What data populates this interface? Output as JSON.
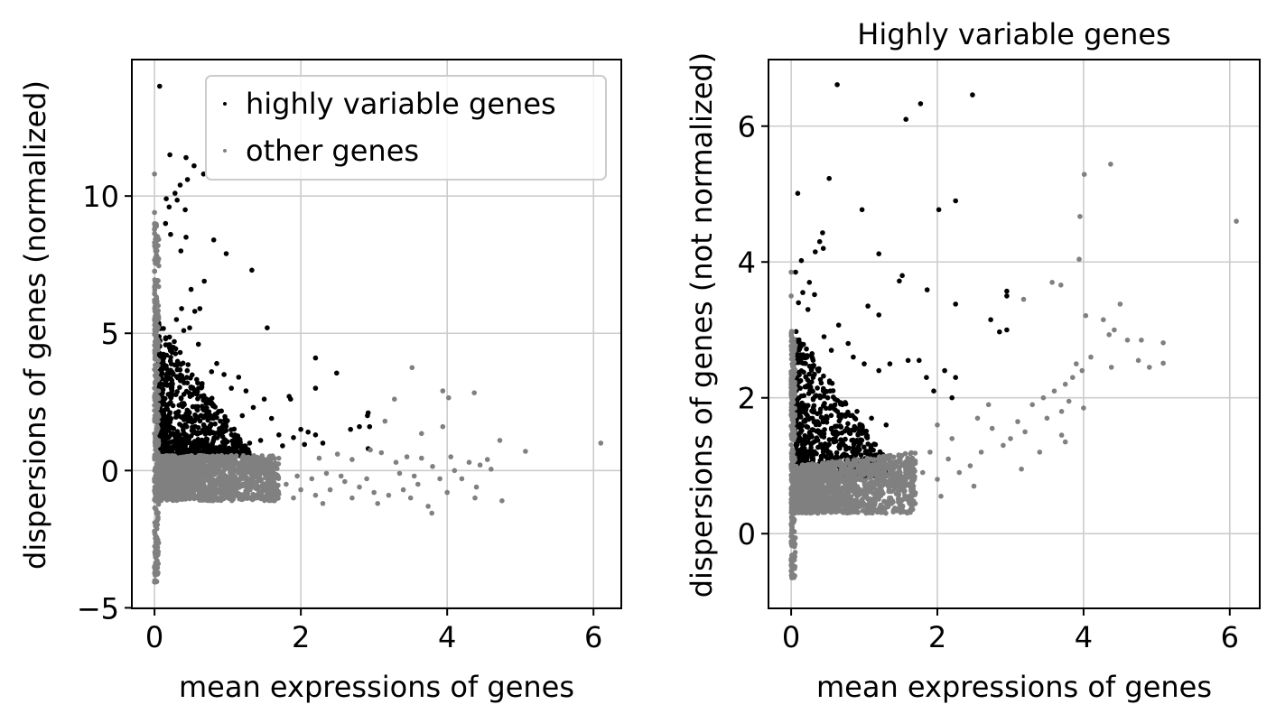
{
  "colors": {
    "highly_variable": "#000000",
    "other": "#808080",
    "grid": "#cccccc",
    "axes": "#000000",
    "legend_border": "#cccccc"
  },
  "chart_data": [
    {
      "type": "scatter",
      "id": "normalized",
      "title": "",
      "xlabel": "mean expressions of genes",
      "ylabel": "dispersions of genes (normalized)",
      "xlim": [
        -0.31,
        6.38
      ],
      "ylim": [
        -5.02,
        14.97
      ],
      "xticks": [
        0,
        2,
        4,
        6
      ],
      "xtick_labels": [
        "0",
        "2",
        "4",
        "6"
      ],
      "yticks": [
        -5,
        0,
        5,
        10
      ],
      "ytick_labels": [
        "−5",
        "0",
        "5",
        "10"
      ],
      "grid": true,
      "legend": {
        "position": "top-right",
        "entries": [
          {
            "label": "highly variable genes",
            "series": "highly_variable"
          },
          {
            "label": "other genes",
            "series": "other"
          }
        ]
      },
      "series": [
        {
          "name": "highly variable genes",
          "key": "highly_variable",
          "points": [
            [
              0.07,
              14.0
            ],
            [
              0.21,
              11.5
            ],
            [
              0.43,
              11.4
            ],
            [
              0.54,
              11.1
            ],
            [
              0.67,
              10.8
            ],
            [
              0.45,
              10.6
            ],
            [
              0.35,
              10.4
            ],
            [
              0.28,
              10.1
            ],
            [
              0.16,
              9.9
            ],
            [
              0.31,
              9.85
            ],
            [
              0.2,
              9.6
            ],
            [
              0.42,
              9.5
            ],
            [
              0.15,
              9.0
            ],
            [
              0.81,
              8.4
            ],
            [
              0.43,
              8.5
            ],
            [
              0.22,
              8.6
            ],
            [
              0.98,
              7.9
            ],
            [
              0.36,
              8.0
            ],
            [
              1.33,
              7.3
            ],
            [
              0.68,
              6.9
            ],
            [
              0.5,
              6.6
            ],
            [
              0.37,
              5.9
            ],
            [
              0.55,
              5.8
            ],
            [
              1.54,
              5.2
            ],
            [
              0.62,
              5.9
            ],
            [
              0.3,
              5.5
            ],
            [
              0.48,
              5.2
            ],
            [
              0.4,
              5.1
            ],
            [
              0.27,
              4.7
            ],
            [
              0.6,
              4.6
            ],
            [
              0.35,
              4.3
            ],
            [
              0.85,
              3.9
            ],
            [
              0.78,
              3.6
            ],
            [
              0.95,
              3.5
            ],
            [
              1.15,
              3.4
            ],
            [
              1.05,
              3.0
            ],
            [
              1.25,
              2.9
            ],
            [
              1.5,
              2.6
            ],
            [
              1.35,
              2.3
            ],
            [
              1.2,
              2.0
            ],
            [
              1.6,
              1.9
            ],
            [
              1.84,
              2.7
            ],
            [
              1.86,
              2.6
            ],
            [
              2.2,
              4.1
            ],
            [
              2.49,
              3.55
            ],
            [
              2.2,
              3.0
            ],
            [
              2.91,
              2.0
            ],
            [
              2.92,
              2.1
            ],
            [
              2.68,
              1.5
            ],
            [
              2.8,
              1.6
            ],
            [
              2.94,
              1.6
            ],
            [
              2.92,
              0.8
            ],
            [
              1.7,
              1.3
            ],
            [
              1.9,
              1.2
            ],
            [
              2.0,
              1.5
            ],
            [
              2.1,
              1.4
            ],
            [
              2.2,
              1.3
            ],
            [
              2.3,
              1.0
            ],
            [
              1.75,
              0.9
            ],
            [
              2.05,
              0.95
            ],
            [
              1.45,
              1.1
            ],
            [
              1.3,
              1.0
            ],
            [
              1.1,
              1.3
            ],
            [
              0.9,
              1.8
            ],
            [
              0.7,
              2.2
            ],
            [
              0.5,
              3.0
            ]
          ],
          "dense_regions": [
            {
              "x": [
                0.05,
                1.3
              ],
              "y_low": 0.55,
              "y_high_at_x0": 5.5,
              "y_high_at_x1": 0.7,
              "count": 900
            }
          ]
        },
        {
          "name": "other genes",
          "key": "other",
          "points": [
            [
              0.0,
              10.8
            ],
            [
              0.0,
              9.4
            ],
            [
              0.01,
              -4.0
            ],
            [
              0.0,
              -3.5
            ],
            [
              3.52,
              3.75
            ],
            [
              3.28,
              2.6
            ],
            [
              3.94,
              2.9
            ],
            [
              4.37,
              2.83
            ],
            [
              3.94,
              1.6
            ],
            [
              4.02,
              2.65
            ],
            [
              3.15,
              1.8
            ],
            [
              3.65,
              1.35
            ],
            [
              6.1,
              1.0
            ],
            [
              4.72,
              1.1
            ],
            [
              5.07,
              0.7
            ],
            [
              4.75,
              -1.1
            ],
            [
              3.79,
              -1.55
            ],
            [
              3.74,
              -1.3
            ],
            [
              2.25,
              0.45
            ],
            [
              2.5,
              0.6
            ],
            [
              2.7,
              0.4
            ],
            [
              2.95,
              0.75
            ],
            [
              3.1,
              0.65
            ],
            [
              3.3,
              0.3
            ],
            [
              3.45,
              0.5
            ],
            [
              3.65,
              0.45
            ],
            [
              3.8,
              0.15
            ],
            [
              4.05,
              0.5
            ],
            [
              4.3,
              0.3
            ],
            [
              4.45,
              0.2
            ],
            [
              4.55,
              0.4
            ],
            [
              4.1,
              0.0
            ],
            [
              3.9,
              -0.3
            ],
            [
              3.6,
              -0.5
            ],
            [
              3.4,
              -0.7
            ],
            [
              3.2,
              -0.9
            ],
            [
              3.0,
              -0.8
            ],
            [
              2.8,
              -0.6
            ],
            [
              2.6,
              -0.4
            ],
            [
              2.4,
              -0.7
            ],
            [
              2.2,
              -0.9
            ],
            [
              2.0,
              -0.7
            ],
            [
              1.8,
              -0.5
            ],
            [
              4.2,
              -0.3
            ],
            [
              4.4,
              -0.6
            ],
            [
              4.0,
              -0.8
            ],
            [
              3.55,
              -0.2
            ],
            [
              3.35,
              -0.1
            ],
            [
              2.9,
              -0.3
            ],
            [
              2.55,
              -0.2
            ],
            [
              2.35,
              -0.1
            ],
            [
              2.15,
              -0.3
            ],
            [
              1.95,
              -0.2
            ],
            [
              4.6,
              0.05
            ],
            [
              3.05,
              -1.2
            ],
            [
              2.7,
              -1.0
            ],
            [
              3.5,
              -1.0
            ],
            [
              4.38,
              -1.0
            ],
            [
              2.3,
              -1.2
            ],
            [
              1.9,
              -1.0
            ]
          ],
          "dense_regions": [
            {
              "x": [
                0.05,
                1.7
              ],
              "y_low": -1.1,
              "y_high": 0.55,
              "count": 1400
            },
            {
              "x": [
                0.0,
                0.06
              ],
              "y_low": -4.1,
              "y_high": 9.0,
              "count": 300
            }
          ]
        }
      ]
    },
    {
      "type": "scatter",
      "id": "not_normalized",
      "title": "Highly variable genes",
      "xlabel": "mean expressions of genes",
      "ylabel": "dispersions of genes (not normalized)",
      "xlim": [
        -0.31,
        6.41
      ],
      "ylim": [
        -1.1,
        6.98
      ],
      "xticks": [
        0,
        2,
        4,
        6
      ],
      "xtick_labels": [
        "0",
        "2",
        "4",
        "6"
      ],
      "yticks": [
        0,
        2,
        4,
        6
      ],
      "ytick_labels": [
        "0",
        "2",
        "4",
        "6"
      ],
      "grid": true,
      "series": [
        {
          "name": "highly variable genes",
          "key": "highly_variable",
          "points": [
            [
              0.63,
              6.61
            ],
            [
              2.48,
              6.46
            ],
            [
              1.77,
              6.33
            ],
            [
              1.57,
              6.1
            ],
            [
              2.25,
              4.9
            ],
            [
              0.52,
              5.23
            ],
            [
              0.09,
              5.01
            ],
            [
              0.97,
              4.77
            ],
            [
              1.86,
              3.59
            ],
            [
              2.02,
              4.77
            ],
            [
              1.2,
              4.12
            ],
            [
              0.43,
              4.43
            ],
            [
              0.39,
              4.3
            ],
            [
              0.44,
              4.2
            ],
            [
              0.33,
              4.15
            ],
            [
              0.14,
              4.02
            ],
            [
              0.06,
              3.85
            ],
            [
              0.16,
              3.55
            ],
            [
              0.25,
              3.7
            ],
            [
              0.32,
              3.52
            ],
            [
              1.52,
              3.8
            ],
            [
              1.48,
              3.72
            ],
            [
              2.25,
              3.38
            ],
            [
              2.95,
              3.57
            ],
            [
              2.95,
              3.5
            ],
            [
              2.73,
              3.15
            ],
            [
              2.85,
              2.97
            ],
            [
              2.95,
              3.0
            ],
            [
              1.2,
              3.22
            ],
            [
              1.05,
              3.35
            ],
            [
              0.65,
              3.07
            ],
            [
              0.1,
              3.4
            ],
            [
              0.23,
              3.3
            ],
            [
              0.45,
              2.9
            ],
            [
              0.55,
              2.7
            ],
            [
              0.78,
              2.8
            ],
            [
              0.85,
              2.6
            ],
            [
              1.0,
              2.5
            ],
            [
              1.2,
              2.4
            ],
            [
              1.35,
              2.5
            ],
            [
              1.6,
              2.55
            ],
            [
              1.75,
              2.55
            ],
            [
              1.85,
              2.3
            ],
            [
              2.1,
              2.4
            ],
            [
              2.25,
              2.3
            ],
            [
              1.95,
              2.1
            ],
            [
              2.2,
              2.0
            ],
            [
              0.3,
              2.3
            ],
            [
              0.5,
              2.0
            ],
            [
              0.7,
              1.9
            ],
            [
              0.9,
              1.8
            ],
            [
              1.1,
              1.7
            ],
            [
              1.3,
              1.6
            ],
            [
              0.25,
              1.7
            ],
            [
              0.4,
              1.5
            ],
            [
              0.6,
              1.4
            ]
          ],
          "dense_regions": [
            {
              "x": [
                0.06,
                1.3
              ],
              "y_low": 0.85,
              "y_high_at_x0": 3.0,
              "y_high_at_x1": 1.1,
              "count": 900
            }
          ]
        },
        {
          "name": "other genes",
          "key": "other",
          "points": [
            [
              4.37,
              5.44
            ],
            [
              4.01,
              5.29
            ],
            [
              3.95,
              4.67
            ],
            [
              6.09,
              4.6
            ],
            [
              3.94,
              4.04
            ],
            [
              3.69,
              3.66
            ],
            [
              3.57,
              3.7
            ],
            [
              4.5,
              3.38
            ],
            [
              3.18,
              3.45
            ],
            [
              4.03,
              3.21
            ],
            [
              4.27,
              3.15
            ],
            [
              4.35,
              2.93
            ],
            [
              4.42,
              3.0
            ],
            [
              4.6,
              2.85
            ],
            [
              4.79,
              2.85
            ],
            [
              5.09,
              2.81
            ],
            [
              5.09,
              2.51
            ],
            [
              4.75,
              2.55
            ],
            [
              4.9,
              2.45
            ],
            [
              4.38,
              2.45
            ],
            [
              4.1,
              2.6
            ],
            [
              3.98,
              2.4
            ],
            [
              3.9,
              2.5
            ],
            [
              3.85,
              2.3
            ],
            [
              3.75,
              2.2
            ],
            [
              3.6,
              2.1
            ],
            [
              3.45,
              2.0
            ],
            [
              3.3,
              1.9
            ],
            [
              4.0,
              1.85
            ],
            [
              3.8,
              1.95
            ],
            [
              3.7,
              1.8
            ],
            [
              3.5,
              1.7
            ],
            [
              3.2,
              1.5
            ],
            [
              3.1,
              1.65
            ],
            [
              3.0,
              1.4
            ],
            [
              2.9,
              1.3
            ],
            [
              2.75,
              1.55
            ],
            [
              2.6,
              1.2
            ],
            [
              2.45,
              1.0
            ],
            [
              2.3,
              0.9
            ],
            [
              2.2,
              1.4
            ],
            [
              2.0,
              1.6
            ],
            [
              1.9,
              1.2
            ],
            [
              2.15,
              1.1
            ],
            [
              2.55,
              1.7
            ],
            [
              2.7,
              1.9
            ],
            [
              3.4,
              1.2
            ],
            [
              3.15,
              0.95
            ],
            [
              3.7,
              1.45
            ],
            [
              3.75,
              1.35
            ],
            [
              2.5,
              0.7
            ],
            [
              2.0,
              0.8
            ],
            [
              1.8,
              0.9
            ],
            [
              1.6,
              1.0
            ],
            [
              2.05,
              0.55
            ],
            [
              1.7,
              0.6
            ],
            [
              0.0,
              3.85
            ],
            [
              0.0,
              3.5
            ],
            [
              0.0,
              2.2
            ],
            [
              0.01,
              -0.65
            ]
          ],
          "dense_regions": [
            {
              "x": [
                0.05,
                1.7
              ],
              "y_low": 0.3,
              "y_high_at_x0": 1.0,
              "y_high_at_x1": 1.2,
              "count": 1400
            },
            {
              "x": [
                0.0,
                0.06
              ],
              "y_low": -0.65,
              "y_high": 3.0,
              "count": 250
            }
          ]
        }
      ]
    }
  ]
}
